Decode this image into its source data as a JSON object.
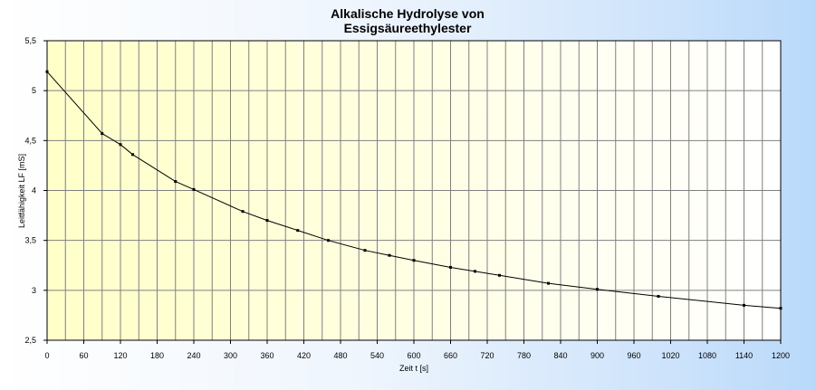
{
  "chart_data": {
    "type": "line",
    "title_line1": "Alkalische Hydrolyse von",
    "title_line2": "Essigsäureethylester",
    "xlabel": "Zeit t  [s]",
    "ylabel": "Leitfähigkeit LF [mS]",
    "xlim": [
      0,
      1200
    ],
    "ylim": [
      2.5,
      5.5
    ],
    "x_tick_labels": [
      "0",
      "60",
      "120",
      "180",
      "240",
      "300",
      "360",
      "420",
      "480",
      "540",
      "600",
      "660",
      "720",
      "780",
      "840",
      "900",
      "960",
      "1020",
      "1080",
      "1140",
      "1200"
    ],
    "y_tick_labels": [
      "2,5",
      "3",
      "3,5",
      "4",
      "4,5",
      "5",
      "5,5"
    ],
    "grid": true,
    "series": [
      {
        "x": [
          0,
          90,
          120,
          140,
          210,
          240,
          320,
          360,
          410,
          460,
          520,
          560,
          600,
          660,
          700,
          740,
          820,
          900,
          1000,
          1140,
          1200
        ],
        "y": [
          5.19,
          4.57,
          4.46,
          4.36,
          4.09,
          4.01,
          3.79,
          3.7,
          3.6,
          3.5,
          3.4,
          3.35,
          3.3,
          3.23,
          3.19,
          3.15,
          3.07,
          3.01,
          2.94,
          2.85,
          2.82
        ]
      }
    ],
    "colors": {
      "plot_bg_left": "#ffffc8",
      "plot_bg_right": "#ffffff",
      "grid": "#808080",
      "line": "#000000"
    }
  }
}
